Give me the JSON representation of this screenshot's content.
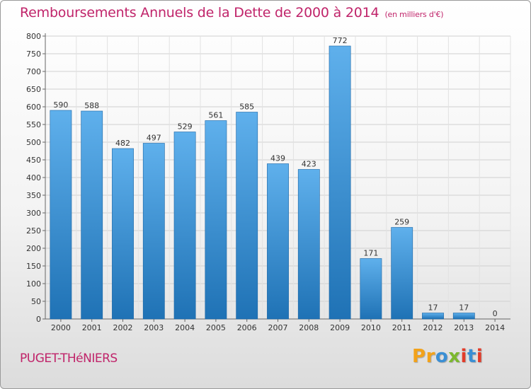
{
  "title": "Remboursements Annuels de la Dette de 2000 à 2014",
  "unit_note": "(en milliers d'€)",
  "commune": "PUGET-THéNIERS",
  "logo": {
    "text": "Proxiti",
    "colors": [
      "#f2a21a",
      "#3a8fd4",
      "#7cb82e",
      "#e23c2a"
    ]
  },
  "colors": {
    "title": "#c0246a",
    "bar_light": "#5fb0ec",
    "bar_dark": "#1f72b5",
    "grid": "#cccccc"
  },
  "chart_data": {
    "type": "bar",
    "categories": [
      "2000",
      "2001",
      "2002",
      "2003",
      "2004",
      "2005",
      "2006",
      "2007",
      "2008",
      "2009",
      "2010",
      "2011",
      "2012",
      "2013",
      "2014"
    ],
    "values": [
      590,
      588,
      482,
      497,
      529,
      561,
      585,
      439,
      423,
      772,
      171,
      259,
      17,
      17,
      0
    ],
    "ylim": [
      0,
      800
    ],
    "yticks": [
      0,
      50,
      100,
      150,
      200,
      250,
      300,
      350,
      400,
      450,
      500,
      550,
      600,
      650,
      700,
      750,
      800
    ],
    "grid": true
  }
}
